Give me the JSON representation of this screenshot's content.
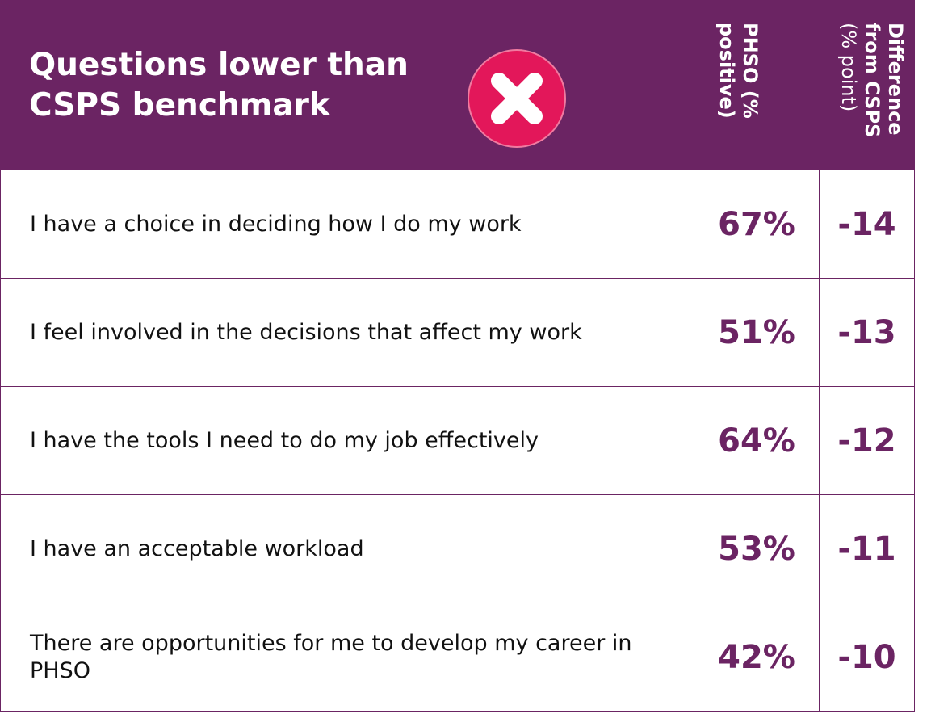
{
  "header": {
    "title": "Questions lower than CSPS benchmark",
    "columns": [
      {
        "lines": [
          "PHSO (%",
          "positive)"
        ]
      },
      {
        "lines": [
          "Difference",
          "from CSPS",
          "(% point)"
        ]
      }
    ]
  },
  "table": {
    "rows": [
      [
        "I have a choice in deciding how I do my work",
        "67%",
        "-14"
      ],
      [
        "I feel involved in the decisions that affect my work",
        "51%",
        "-13"
      ],
      [
        "I have the tools I need to do my job effectively",
        "64%",
        "-12"
      ],
      [
        "I have an acceptable workload",
        "53%",
        "-11"
      ],
      [
        "There are opportunities for me to develop my career in PHSO",
        "42%",
        "-10"
      ]
    ]
  }
}
